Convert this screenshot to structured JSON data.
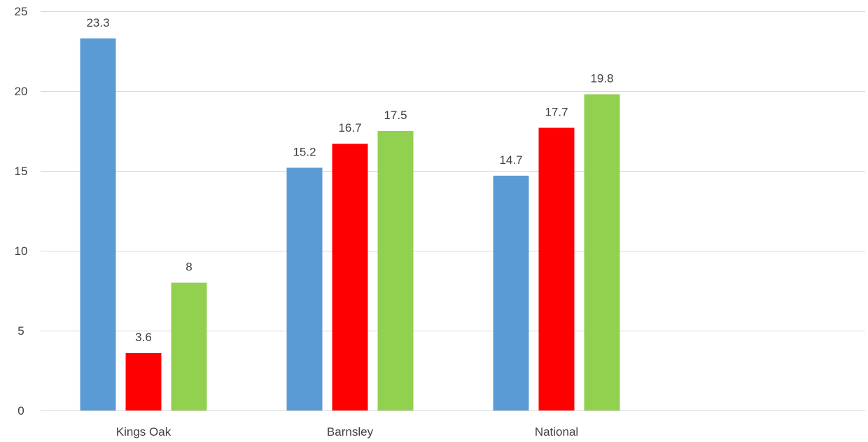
{
  "chart_data": {
    "type": "bar",
    "categories": [
      "Kings Oak",
      "Barnsley",
      "National"
    ],
    "series": [
      {
        "values": [
          23.3,
          15.2,
          14.7
        ],
        "color": "#5b9bd5"
      },
      {
        "values": [
          3.6,
          16.7,
          17.7
        ],
        "color": "#ff0000"
      },
      {
        "values": [
          8,
          17.5,
          19.8
        ],
        "color": "#92d050"
      }
    ],
    "y_ticks": [
      "0",
      "5",
      "10",
      "15",
      "20",
      "25"
    ],
    "ylim": [
      0,
      25
    ],
    "grid": true,
    "legend": "none",
    "data_labels": [
      [
        "23.3",
        "15.2",
        "14.7"
      ],
      [
        "3.6",
        "16.7",
        "17.7"
      ],
      [
        "8",
        "17.5",
        "19.8"
      ]
    ]
  }
}
